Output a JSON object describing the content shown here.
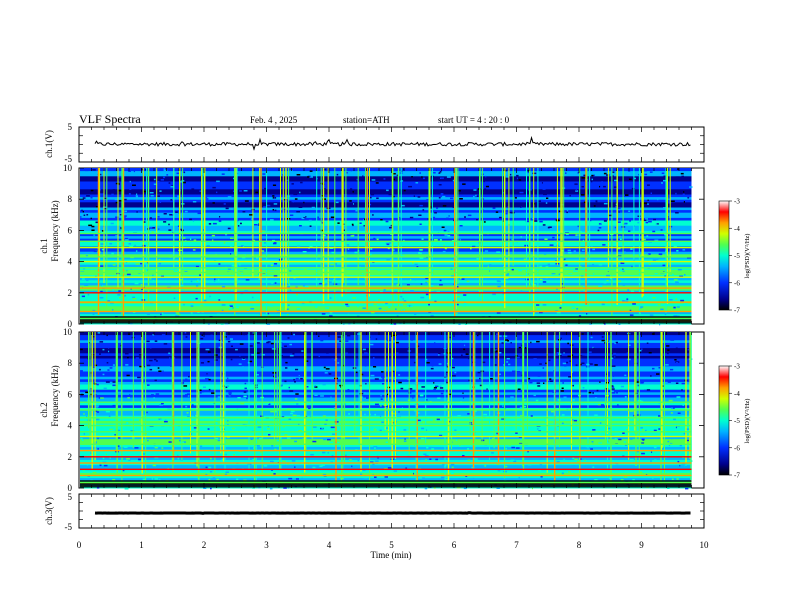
{
  "header": {
    "title": "VLF  Spectra",
    "date": "Feb. 4 , 2025",
    "station": "station=ATH",
    "start": "start  UT  =   4  : 20 : 0"
  },
  "chart_data": [
    {
      "type": "line",
      "name": "ch1-voltage",
      "ylabel": "ch.1(V)",
      "ylim": [
        -5,
        5
      ],
      "yticks": [
        "5",
        "-5"
      ],
      "xlim": [
        0,
        10
      ],
      "level": 0.1
    },
    {
      "type": "heatmap",
      "name": "ch1-spectrogram",
      "ylabel_top": "ch.1",
      "ylabel": "Frequency  (kHz)",
      "ylim": [
        0,
        10
      ],
      "yticks": [
        "0",
        "2",
        "4",
        "6",
        "8",
        "10"
      ],
      "xlim": [
        0,
        10
      ],
      "data_extent_min": 9.8,
      "colorbar": {
        "label": "log(PSD)(V²/Hz)",
        "range": [
          -7,
          -3
        ],
        "ticks": [
          "-3",
          "-4",
          "-5",
          "-6",
          "-7"
        ]
      },
      "strong_lines_khz": [
        0.2,
        0.4,
        0.8,
        1.4,
        2.0,
        2.3,
        3.0,
        3.3,
        3.6,
        4.0,
        4.3,
        4.9,
        5.3,
        5.8
      ],
      "burst_minutes": [
        0.3,
        0.7,
        1.1,
        1.6,
        2.0,
        2.5,
        2.9,
        3.3,
        3.9,
        4.2,
        4.6,
        5.1,
        5.6,
        6.0,
        6.4,
        6.8,
        7.2,
        7.7,
        8.1,
        8.6,
        9.0,
        9.4
      ]
    },
    {
      "type": "heatmap",
      "name": "ch2-spectrogram",
      "ylabel_top": "ch.2",
      "ylabel": "Frequency  (kHz)",
      "ylim": [
        0,
        10
      ],
      "yticks": [
        "0",
        "2",
        "4",
        "6",
        "8",
        "10"
      ],
      "xlim": [
        0,
        10
      ],
      "data_extent_min": 9.8,
      "colorbar": {
        "label": "log(PSD)(V²/Hz)",
        "range": [
          -7,
          -3
        ],
        "ticks": [
          "-3",
          "-4",
          "-5",
          "-6",
          "-7"
        ]
      },
      "strong_lines_khz": [
        0.3,
        0.8,
        1.2,
        1.6,
        2.0,
        2.4,
        2.8,
        3.3,
        3.6,
        4.0,
        4.5,
        5.0,
        5.5
      ],
      "burst_minutes": [
        0.2,
        0.6,
        1.0,
        1.5,
        1.9,
        2.3,
        2.8,
        3.2,
        3.6,
        4.1,
        4.5,
        5.0,
        5.4,
        5.9,
        6.3,
        6.7,
        7.1,
        7.6,
        8.0,
        8.5,
        8.9,
        9.3,
        9.7
      ]
    },
    {
      "type": "line",
      "name": "ch3-voltage",
      "ylabel": "ch.3(V)",
      "ylim": [
        -5,
        5
      ],
      "yticks": [
        "5",
        "-5"
      ],
      "xlim": [
        0,
        10
      ],
      "level": -0.6,
      "xlabel": "Time  (min)",
      "xticks": [
        "0",
        "1",
        "2",
        "3",
        "4",
        "5",
        "6",
        "7",
        "8",
        "9",
        "10"
      ]
    }
  ],
  "colors": {
    "line": "#000000",
    "colormap": [
      "#000000",
      "#00008c",
      "#0030ff",
      "#00b4ff",
      "#00ffd0",
      "#50ff50",
      "#d0ff00",
      "#ffa000",
      "#ff0000",
      "#ffffff"
    ]
  }
}
